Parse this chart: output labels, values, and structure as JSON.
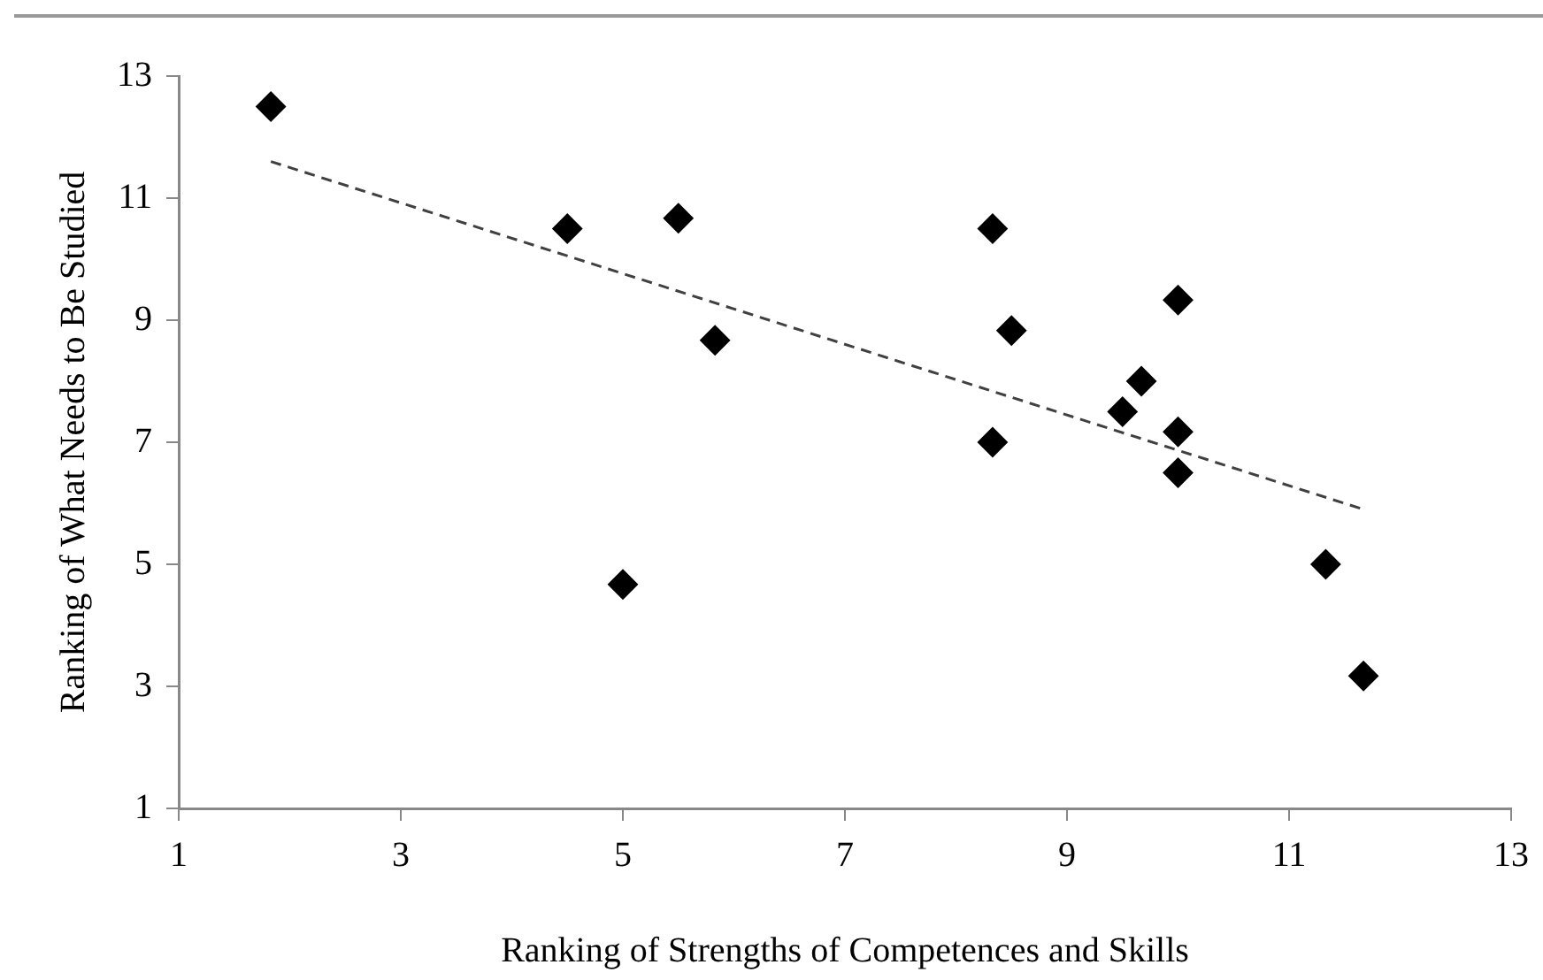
{
  "chart_data": {
    "type": "scatter",
    "xlabel": "Ranking of Strengths of Competences and Skills",
    "ylabel": "Ranking of What Needs to Be Studied",
    "xlim": [
      1,
      13
    ],
    "xticks": [
      1,
      3,
      5,
      7,
      9,
      11,
      13
    ],
    "ylim": [
      1,
      13
    ],
    "yticks": [
      1,
      3,
      5,
      7,
      9,
      11,
      13
    ],
    "grid": false,
    "legend": false,
    "marker": "diamond",
    "series": [
      {
        "color": "#000000",
        "x": [
          1.83,
          4.5,
          5.5,
          5.83,
          5,
          8.33,
          8.5,
          10,
          9.67,
          9.5,
          10,
          8.33,
          10,
          11.33,
          11.67
        ],
        "values": [
          12.5,
          10.5,
          10.67,
          8.67,
          4.67,
          10.5,
          8.83,
          9.33,
          8,
          7.5,
          7.17,
          7,
          6.5,
          5,
          3.17
        ]
      },
      {
        "type": "line",
        "color": "#404040",
        "line_style": "dashed",
        "marker": "none",
        "x": [
          1.83,
          11.67
        ],
        "values": [
          11.6,
          5.9
        ]
      }
    ]
  }
}
